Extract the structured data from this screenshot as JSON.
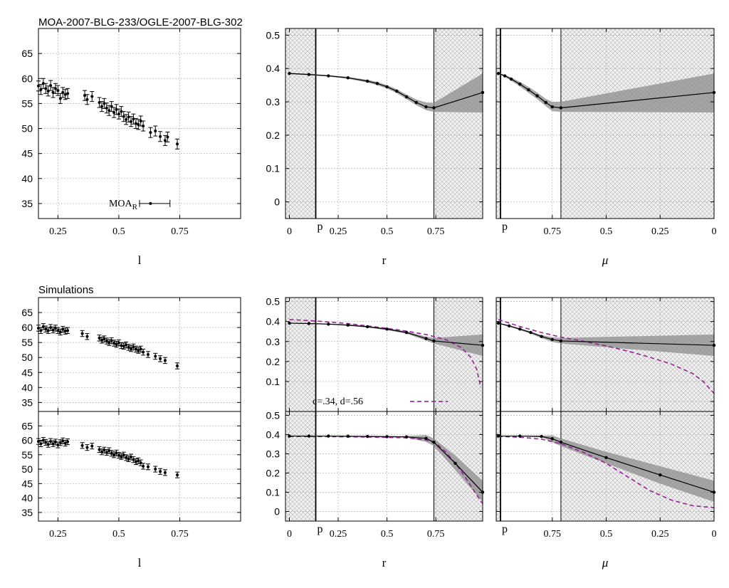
{
  "figure": {
    "top_title": "MOA-2007-BLG-233/OGLE-2007-BLG-302",
    "bottom_title": "Simulations"
  },
  "chart_data": [
    {
      "id": "left-top",
      "type": "scatter",
      "xlabel": "l",
      "xlim": [
        0.17,
        1.0
      ],
      "ylim": [
        32,
        70
      ],
      "xticks": [
        "0.25",
        "0.5",
        "0.75"
      ],
      "xtick_values": [
        0.25,
        0.5,
        0.75
      ],
      "yticks": [
        "35",
        "40",
        "45",
        "50",
        "55",
        "60",
        "65"
      ],
      "ytick_values": [
        35,
        40,
        45,
        50,
        55,
        60,
        65
      ],
      "points": [
        [
          0.17,
          58.5
        ],
        [
          0.18,
          57.8
        ],
        [
          0.19,
          59.0
        ],
        [
          0.2,
          58.0
        ],
        [
          0.21,
          57.5
        ],
        [
          0.22,
          58.6
        ],
        [
          0.23,
          57.2
        ],
        [
          0.24,
          58.0
        ],
        [
          0.25,
          57.6
        ],
        [
          0.26,
          56.0
        ],
        [
          0.27,
          57.2
        ],
        [
          0.28,
          56.8
        ],
        [
          0.29,
          57.0
        ],
        [
          0.36,
          56.6
        ],
        [
          0.37,
          55.8
        ],
        [
          0.39,
          56.4
        ],
        [
          0.42,
          55.2
        ],
        [
          0.43,
          54.4
        ],
        [
          0.44,
          55.0
        ],
        [
          0.45,
          54.1
        ],
        [
          0.46,
          53.6
        ],
        [
          0.47,
          54.4
        ],
        [
          0.48,
          53.2
        ],
        [
          0.49,
          53.8
        ],
        [
          0.5,
          52.9
        ],
        [
          0.51,
          53.4
        ],
        [
          0.52,
          52.4
        ],
        [
          0.53,
          51.8
        ],
        [
          0.54,
          52.3
        ],
        [
          0.55,
          51.4
        ],
        [
          0.56,
          51.9
        ],
        [
          0.57,
          51.0
        ],
        [
          0.58,
          50.8
        ],
        [
          0.59,
          51.5
        ],
        [
          0.6,
          50.5
        ],
        [
          0.63,
          49.2
        ],
        [
          0.65,
          49.5
        ],
        [
          0.67,
          48.4
        ],
        [
          0.69,
          47.6
        ],
        [
          0.7,
          48.3
        ],
        [
          0.74,
          46.9
        ]
      ],
      "error_bar": 1.0,
      "annotation": {
        "label": "MOA",
        "subscript": "R",
        "x": 0.63,
        "y": 35,
        "xerr_low": 0.045,
        "xerr_high": 0.08
      }
    },
    {
      "id": "middle-top",
      "type": "line",
      "xlabel": "r",
      "xlim": [
        -0.02,
        0.99
      ],
      "ylim": [
        -0.05,
        0.52
      ],
      "xticks": [
        "0",
        "0.25",
        "0.5",
        "0.75"
      ],
      "xtick_values": [
        0,
        0.25,
        0.5,
        0.75
      ],
      "yticks": [
        "0",
        "0.1",
        "0.2",
        "0.3",
        "0.4",
        "0.5"
      ],
      "ytick_values": [
        0,
        0.1,
        0.2,
        0.3,
        0.4,
        0.5
      ],
      "marker_label": "p",
      "marker_x": 0.135,
      "right_boundary": 0.74,
      "x": [
        0,
        0.1,
        0.2,
        0.3,
        0.4,
        0.45,
        0.5,
        0.55,
        0.6,
        0.65,
        0.7,
        0.74,
        0.99
      ],
      "y": [
        0.385,
        0.382,
        0.378,
        0.372,
        0.362,
        0.355,
        0.345,
        0.332,
        0.315,
        0.298,
        0.285,
        0.282,
        0.328
      ],
      "band_upper": [
        0.387,
        0.384,
        0.38,
        0.375,
        0.366,
        0.36,
        0.35,
        0.338,
        0.322,
        0.307,
        0.298,
        0.297,
        0.385
      ],
      "band_lower": [
        0.383,
        0.38,
        0.376,
        0.369,
        0.358,
        0.35,
        0.34,
        0.326,
        0.308,
        0.29,
        0.275,
        0.27,
        0.268
      ]
    },
    {
      "id": "right-top",
      "type": "line",
      "xlabel": "μ",
      "xlim": [
        -0.01,
        1.0
      ],
      "ylim": [
        -0.05,
        0.52
      ],
      "xticks": [
        "0.75",
        "0.5",
        "0.25",
        "0"
      ],
      "xtick_values": [
        0.25,
        0.5,
        0.75,
        1.0
      ],
      "yticks": [],
      "ytick_values": [
        0,
        0.1,
        0.2,
        0.3,
        0.4,
        0.5
      ],
      "marker_label": "p",
      "marker_x": 0.01,
      "right_boundary": 0.29,
      "x": [
        0,
        0.03,
        0.06,
        0.1,
        0.14,
        0.18,
        0.22,
        0.25,
        0.29,
        1.0
      ],
      "y": [
        0.385,
        0.378,
        0.368,
        0.353,
        0.336,
        0.318,
        0.298,
        0.285,
        0.282,
        0.328
      ],
      "band_upper": [
        0.387,
        0.381,
        0.373,
        0.36,
        0.345,
        0.328,
        0.309,
        0.3,
        0.3,
        0.385
      ],
      "band_lower": [
        0.383,
        0.375,
        0.363,
        0.346,
        0.327,
        0.308,
        0.287,
        0.272,
        0.27,
        0.268
      ]
    },
    {
      "id": "left-mid",
      "type": "scatter",
      "xlabel": "",
      "xlim": [
        0.17,
        1.0
      ],
      "ylim": [
        32,
        70
      ],
      "xticks": [],
      "xtick_values": [
        0.25,
        0.5,
        0.75
      ],
      "yticks": [
        "35",
        "40",
        "45",
        "50",
        "55",
        "60",
        "65"
      ],
      "ytick_values": [
        35,
        40,
        45,
        50,
        55,
        60,
        65
      ],
      "points": [
        [
          0.17,
          59.8
        ],
        [
          0.18,
          59.0
        ],
        [
          0.19,
          60.3
        ],
        [
          0.2,
          59.5
        ],
        [
          0.21,
          59.0
        ],
        [
          0.22,
          60.0
        ],
        [
          0.23,
          59.2
        ],
        [
          0.24,
          59.8
        ],
        [
          0.25,
          59.0
        ],
        [
          0.26,
          58.5
        ],
        [
          0.27,
          59.4
        ],
        [
          0.28,
          58.8
        ],
        [
          0.29,
          59.0
        ],
        [
          0.35,
          58.0
        ],
        [
          0.37,
          57.0
        ],
        [
          0.42,
          56.5
        ],
        [
          0.43,
          55.8
        ],
        [
          0.44,
          56.2
        ],
        [
          0.45,
          55.5
        ],
        [
          0.46,
          55.0
        ],
        [
          0.47,
          55.6
        ],
        [
          0.48,
          54.8
        ],
        [
          0.49,
          54.4
        ],
        [
          0.5,
          54.9
        ],
        [
          0.51,
          54.0
        ],
        [
          0.52,
          53.8
        ],
        [
          0.53,
          54.2
        ],
        [
          0.54,
          53.4
        ],
        [
          0.55,
          53.0
        ],
        [
          0.56,
          53.5
        ],
        [
          0.57,
          52.8
        ],
        [
          0.58,
          52.4
        ],
        [
          0.59,
          52.8
        ],
        [
          0.6,
          51.8
        ],
        [
          0.62,
          51.0
        ],
        [
          0.65,
          50.4
        ],
        [
          0.67,
          49.6
        ],
        [
          0.69,
          49.0
        ],
        [
          0.74,
          47.2
        ]
      ],
      "error_bar": 1.0
    },
    {
      "id": "middle-mid",
      "type": "line",
      "xlabel": "",
      "xlim": [
        -0.02,
        0.99
      ],
      "ylim": [
        -0.05,
        0.52
      ],
      "xticks": [],
      "xtick_values": [
        0,
        0.25,
        0.5,
        0.75
      ],
      "yticks": [
        "0.1",
        "0.2",
        "0.3",
        "0.4",
        "0.5"
      ],
      "ytick_values": [
        0.1,
        0.2,
        0.3,
        0.4,
        0.5
      ],
      "marker_x": 0.135,
      "right_boundary": 0.74,
      "x": [
        0,
        0.1,
        0.2,
        0.3,
        0.4,
        0.5,
        0.6,
        0.7,
        0.74,
        0.99
      ],
      "y": [
        0.392,
        0.39,
        0.387,
        0.382,
        0.374,
        0.362,
        0.345,
        0.315,
        0.303,
        0.281
      ],
      "band_upper": [
        0.394,
        0.392,
        0.39,
        0.386,
        0.378,
        0.367,
        0.351,
        0.325,
        0.318,
        0.335
      ],
      "band_lower": [
        0.39,
        0.388,
        0.385,
        0.379,
        0.37,
        0.357,
        0.339,
        0.305,
        0.29,
        0.228
      ],
      "model": {
        "name": "c=.34, d=.56",
        "x": [
          0,
          0.1,
          0.2,
          0.3,
          0.4,
          0.5,
          0.6,
          0.7,
          0.8,
          0.88,
          0.93,
          0.96,
          0.98
        ],
        "y": [
          0.41,
          0.405,
          0.398,
          0.39,
          0.378,
          0.366,
          0.352,
          0.335,
          0.31,
          0.27,
          0.22,
          0.16,
          0.07
        ]
      }
    },
    {
      "id": "right-mid",
      "type": "line",
      "xlabel": "",
      "xlim": [
        -0.01,
        1.0
      ],
      "ylim": [
        -0.05,
        0.52
      ],
      "xticks": [],
      "xtick_values": [
        0.25,
        0.5,
        0.75,
        1.0
      ],
      "yticks": [],
      "ytick_values": [
        0,
        0.1,
        0.2,
        0.3,
        0.4,
        0.5
      ],
      "marker_x": 0.01,
      "right_boundary": 0.29,
      "x": [
        0,
        0.05,
        0.1,
        0.15,
        0.2,
        0.25,
        0.29,
        1.0
      ],
      "y": [
        0.392,
        0.378,
        0.362,
        0.345,
        0.325,
        0.31,
        0.303,
        0.281
      ],
      "band_upper": [
        0.394,
        0.382,
        0.367,
        0.351,
        0.333,
        0.322,
        0.318,
        0.335
      ],
      "band_lower": [
        0.39,
        0.374,
        0.357,
        0.339,
        0.317,
        0.298,
        0.29,
        0.228
      ],
      "model": {
        "x": [
          0,
          0.1,
          0.2,
          0.29,
          0.4,
          0.5,
          0.6,
          0.7,
          0.8,
          0.9,
          0.95,
          1.0
        ],
        "y": [
          0.41,
          0.375,
          0.345,
          0.322,
          0.3,
          0.278,
          0.252,
          0.222,
          0.188,
          0.14,
          0.1,
          0.04
        ]
      }
    },
    {
      "id": "left-bottom",
      "type": "scatter",
      "xlabel": "l",
      "xlim": [
        0.17,
        1.0
      ],
      "ylim": [
        32,
        70
      ],
      "xticks": [
        "0.25",
        "0.5",
        "0.75"
      ],
      "xtick_values": [
        0.25,
        0.5,
        0.75
      ],
      "yticks": [
        "35",
        "40",
        "45",
        "50",
        "55",
        "60",
        "65"
      ],
      "ytick_values": [
        35,
        40,
        45,
        50,
        55,
        60,
        65
      ],
      "points": [
        [
          0.17,
          59.6
        ],
        [
          0.18,
          58.8
        ],
        [
          0.19,
          60.0
        ],
        [
          0.2,
          59.3
        ],
        [
          0.21,
          58.6
        ],
        [
          0.22,
          59.6
        ],
        [
          0.23,
          58.8
        ],
        [
          0.24,
          59.4
        ],
        [
          0.25,
          58.4
        ],
        [
          0.26,
          59.2
        ],
        [
          0.27,
          59.8
        ],
        [
          0.28,
          59.0
        ],
        [
          0.29,
          59.5
        ],
        [
          0.35,
          58.2
        ],
        [
          0.37,
          57.5
        ],
        [
          0.39,
          58.0
        ],
        [
          0.42,
          56.8
        ],
        [
          0.43,
          56.0
        ],
        [
          0.44,
          56.6
        ],
        [
          0.45,
          55.8
        ],
        [
          0.46,
          56.4
        ],
        [
          0.47,
          55.5
        ],
        [
          0.48,
          55.0
        ],
        [
          0.49,
          55.6
        ],
        [
          0.5,
          54.8
        ],
        [
          0.51,
          54.4
        ],
        [
          0.52,
          54.9
        ],
        [
          0.53,
          54.0
        ],
        [
          0.54,
          53.6
        ],
        [
          0.55,
          54.2
        ],
        [
          0.56,
          53.3
        ],
        [
          0.57,
          52.6
        ],
        [
          0.58,
          52.9
        ],
        [
          0.59,
          52.2
        ],
        [
          0.6,
          51.0
        ],
        [
          0.62,
          50.8
        ],
        [
          0.65,
          50.0
        ],
        [
          0.67,
          49.2
        ],
        [
          0.69,
          48.8
        ],
        [
          0.74,
          48.0
        ]
      ],
      "error_bar": 1.0
    },
    {
      "id": "middle-bottom",
      "type": "line",
      "xlabel": "r",
      "xlim": [
        -0.02,
        0.99
      ],
      "ylim": [
        -0.05,
        0.52
      ],
      "xticks": [
        "0",
        "0.25",
        "0.5",
        "0.75"
      ],
      "xtick_values": [
        0,
        0.25,
        0.5,
        0.75
      ],
      "yticks": [
        "0",
        "0.1",
        "0.2",
        "0.3",
        "0.4",
        "0.5"
      ],
      "ytick_values": [
        0,
        0.1,
        0.2,
        0.3,
        0.4,
        0.5
      ],
      "marker_label": "p",
      "marker_x": 0.135,
      "right_boundary": 0.74,
      "x": [
        0,
        0.1,
        0.2,
        0.3,
        0.4,
        0.5,
        0.6,
        0.7,
        0.74,
        0.85,
        0.99
      ],
      "y": [
        0.392,
        0.392,
        0.392,
        0.391,
        0.39,
        0.389,
        0.388,
        0.38,
        0.36,
        0.25,
        0.1
      ],
      "band_upper": [
        0.394,
        0.394,
        0.394,
        0.394,
        0.393,
        0.392,
        0.392,
        0.398,
        0.38,
        0.29,
        0.16
      ],
      "band_lower": [
        0.39,
        0.39,
        0.39,
        0.388,
        0.387,
        0.386,
        0.384,
        0.362,
        0.34,
        0.215,
        0.05
      ],
      "model": {
        "x": [
          0,
          0.2,
          0.4,
          0.6,
          0.7,
          0.75,
          0.8,
          0.85,
          0.9,
          0.95,
          0.99
        ],
        "y": [
          0.39,
          0.389,
          0.387,
          0.383,
          0.372,
          0.355,
          0.31,
          0.25,
          0.18,
          0.1,
          0.04
        ]
      }
    },
    {
      "id": "right-bottom",
      "type": "line",
      "xlabel": "μ",
      "xlim": [
        -0.01,
        1.0
      ],
      "ylim": [
        -0.05,
        0.52
      ],
      "xticks": [
        "0.75",
        "0.5",
        "0.25",
        "0"
      ],
      "xtick_values": [
        0.25,
        0.5,
        0.75,
        1.0
      ],
      "yticks": [],
      "ytick_values": [
        0,
        0.1,
        0.2,
        0.3,
        0.4,
        0.5
      ],
      "marker_label": "p",
      "marker_x": 0.01,
      "right_boundary": 0.29,
      "x": [
        0,
        0.1,
        0.2,
        0.25,
        0.29,
        0.5,
        0.75,
        1.0
      ],
      "y": [
        0.392,
        0.392,
        0.39,
        0.378,
        0.36,
        0.28,
        0.19,
        0.1
      ],
      "band_upper": [
        0.394,
        0.394,
        0.394,
        0.396,
        0.38,
        0.31,
        0.235,
        0.16
      ],
      "band_lower": [
        0.39,
        0.39,
        0.386,
        0.36,
        0.34,
        0.25,
        0.145,
        0.05
      ],
      "model": {
        "x": [
          0,
          0.1,
          0.2,
          0.29,
          0.4,
          0.5,
          0.6,
          0.7,
          0.8,
          0.9,
          1.0
        ],
        "y": [
          0.39,
          0.386,
          0.376,
          0.352,
          0.305,
          0.25,
          0.18,
          0.11,
          0.06,
          0.03,
          0.02
        ]
      }
    }
  ]
}
